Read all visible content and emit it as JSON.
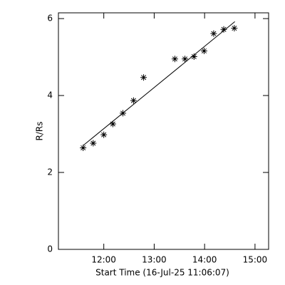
{
  "chart_data": {
    "type": "scatter",
    "x_label": "Start Time (16-Jul-25 11:06:07)",
    "y_label": "R/Rs",
    "x": [
      11.59,
      11.79,
      12.0,
      12.18,
      12.38,
      12.59,
      12.79,
      13.41,
      13.61,
      13.79,
      13.99,
      14.18,
      14.38,
      14.59
    ],
    "values": [
      2.64,
      2.76,
      2.98,
      3.26,
      3.54,
      3.87,
      4.47,
      4.95,
      4.95,
      5.01,
      5.16,
      5.61,
      5.72,
      5.75
    ],
    "color": "#000000",
    "fit": {
      "x": [
        11.59,
        14.6
      ],
      "values": [
        2.7,
        5.92
      ]
    },
    "xlim": [
      11.1,
      15.27
    ],
    "ylim": [
      0,
      6.15
    ],
    "xticks": [
      {
        "value": 12,
        "label": "12:00"
      },
      {
        "value": 13,
        "label": "13:00"
      },
      {
        "value": 14,
        "label": "14:00"
      },
      {
        "value": 15,
        "label": "15:00"
      }
    ],
    "yticks": [
      0,
      2,
      4,
      6
    ]
  }
}
